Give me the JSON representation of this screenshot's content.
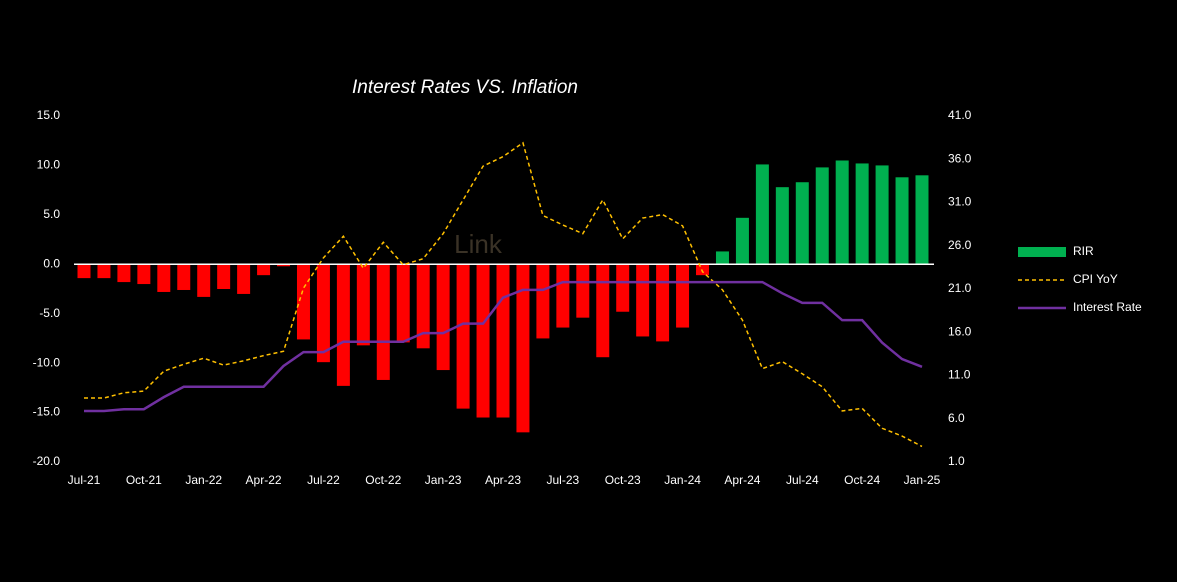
{
  "chart_data": {
    "type": "bar_line",
    "title": "Interest Rates VS. Inflation",
    "watermark": "Link",
    "categories": [
      "Jul-21",
      null,
      null,
      "Oct-21",
      null,
      null,
      "Jan-22",
      null,
      null,
      "Apr-22",
      null,
      null,
      "Jul-22",
      null,
      null,
      "Oct-22",
      null,
      null,
      "Jan-23",
      null,
      null,
      "Apr-23",
      null,
      null,
      "Jul-23",
      null,
      null,
      "Oct-23",
      null,
      null,
      "Jan-24",
      null,
      null,
      "Apr-24",
      null,
      null,
      "Jul-24",
      null,
      null,
      "Oct-24",
      null,
      null,
      "Jan-25"
    ],
    "series": [
      {
        "name": "RIR",
        "type": "bar",
        "color": "#00b050",
        "negative_color": "#ff0000",
        "values": [
          -1.4,
          -1.4,
          -1.8,
          -2.0,
          -2.8,
          -2.6,
          -3.3,
          -2.5,
          -3.0,
          -1.1,
          -0.2,
          -7.6,
          -9.9,
          -12.3,
          -8.2,
          -11.7,
          -7.9,
          -8.5,
          -10.7,
          -14.6,
          -15.5,
          -15.5,
          -17.0,
          -7.5,
          -6.4,
          -5.4,
          -9.4,
          -4.8,
          -7.3,
          -7.8,
          -6.4,
          -1.1,
          1.3,
          4.7,
          10.1,
          7.8,
          8.3,
          9.8,
          10.5,
          10.2,
          10.0,
          8.8,
          9.0
        ]
      },
      {
        "name": "CPI YoY",
        "type": "line",
        "axis": "y2",
        "color": "#ffc000",
        "line_style": "dashed",
        "values": [
          8.4,
          8.4,
          9.0,
          9.2,
          11.5,
          12.3,
          13.0,
          12.2,
          12.7,
          13.3,
          13.8,
          21.1,
          24.6,
          27.1,
          23.4,
          26.4,
          23.8,
          24.5,
          27.4,
          31.3,
          35.2,
          36.3,
          37.9,
          29.5,
          28.4,
          27.4,
          31.3,
          26.8,
          29.2,
          29.6,
          28.3,
          23.0,
          20.9,
          17.4,
          11.8,
          12.6,
          11.2,
          9.7,
          6.9,
          7.2,
          4.9,
          4.0,
          2.8
        ]
      },
      {
        "name": "Interest Rate",
        "type": "line",
        "axis": "y2",
        "color": "#7030a0",
        "line_style": "solid",
        "values": [
          6.9,
          6.9,
          7.1,
          7.1,
          8.5,
          9.7,
          9.7,
          9.7,
          9.7,
          9.7,
          12.1,
          13.7,
          13.7,
          14.9,
          14.9,
          14.9,
          14.9,
          15.9,
          15.9,
          17.0,
          17.0,
          20.0,
          20.9,
          20.9,
          21.8,
          21.8,
          21.8,
          21.8,
          21.8,
          21.8,
          21.8,
          21.8,
          21.8,
          21.8,
          21.8,
          20.5,
          19.4,
          19.4,
          17.4,
          17.4,
          14.8,
          12.9,
          12.0
        ]
      }
    ],
    "ylim": [
      -20,
      15
    ],
    "yticks": [
      {
        "value": -20,
        "label": "-20.0"
      },
      {
        "value": -15,
        "label": "-15.0"
      },
      {
        "value": -10,
        "label": "-10.0"
      },
      {
        "value": -5,
        "label": "-5.0"
      },
      {
        "value": 0,
        "label": "0.0"
      },
      {
        "value": 5,
        "label": "5.0"
      },
      {
        "value": 10,
        "label": "10.0"
      },
      {
        "value": 15,
        "label": "15.0"
      }
    ],
    "y2lim": [
      1,
      41
    ],
    "y2ticks": [
      {
        "value": 1,
        "label": "1.0"
      },
      {
        "value": 6,
        "label": "6.0"
      },
      {
        "value": 11,
        "label": "11.0"
      },
      {
        "value": 16,
        "label": "16.0"
      },
      {
        "value": 21,
        "label": "21.0"
      },
      {
        "value": 26,
        "label": "26.0"
      },
      {
        "value": 31,
        "label": "31.0"
      },
      {
        "value": 36,
        "label": "36.0"
      },
      {
        "value": 41,
        "label": "41.0"
      }
    ],
    "grid": false,
    "legend": "right"
  }
}
